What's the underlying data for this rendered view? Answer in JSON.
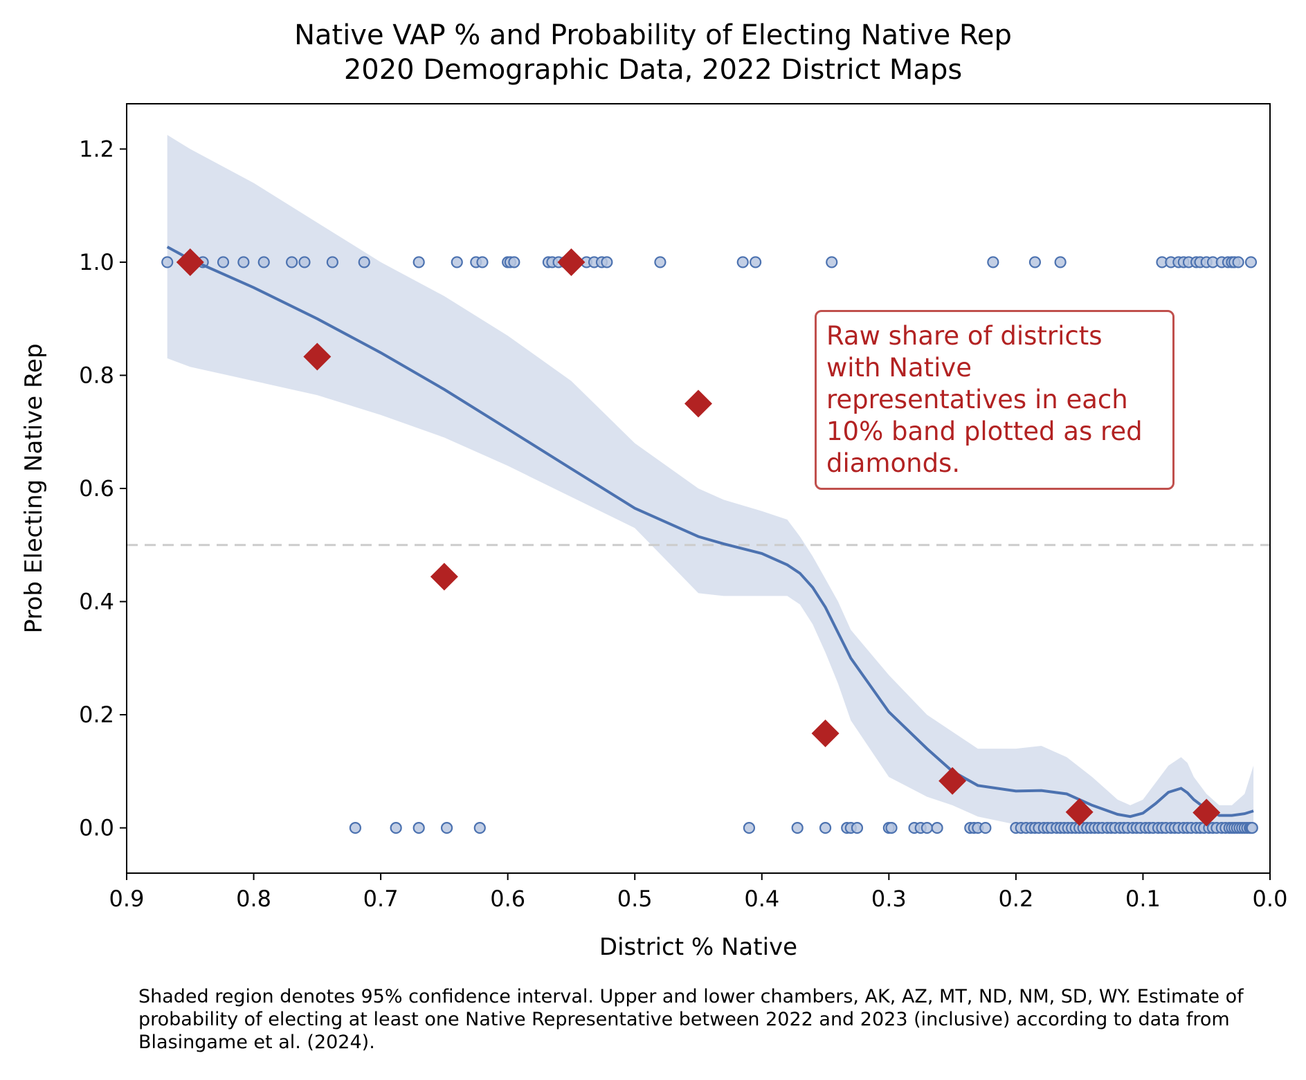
{
  "title": "Native VAP % and Probability of Electing Native Rep",
  "subtitle": "2020 Demographic Data, 2022 District Maps",
  "caption": "Shaded region denotes 95% confidence interval. Upper and lower chambers, AK, AZ, MT, ND, NM, SD, WY. Estimate of probability of electing at least one Native Representative between 2022 and 2023 (inclusive) according to data from Blasingame et al. (2024).",
  "annotation": "Raw share of districts with Native representatives in each 10% band plotted as red diamonds.",
  "colors": {
    "fit_line": "#4c72b0",
    "band": "#dbe2ef",
    "diamond": "#b22222",
    "dots": "#4c72b0",
    "reference": "#cccccc"
  },
  "chart_data": {
    "type": "scatter",
    "xlabel": "District % Native",
    "ylabel": "Prob Electing Native Rep",
    "xlim": [
      0.9,
      0.0
    ],
    "ylim": [
      -0.08,
      1.28
    ],
    "x_ticks": [
      "0.9",
      "0.8",
      "0.7",
      "0.6",
      "0.5",
      "0.4",
      "0.3",
      "0.2",
      "0.1",
      "0.0"
    ],
    "y_ticks": [
      "0.0",
      "0.2",
      "0.4",
      "0.6",
      "0.8",
      "1.0",
      "1.2"
    ],
    "grid": false,
    "reference_line": {
      "y": 0.5,
      "style": "dashed"
    },
    "districts_elected_native": [
      0.868,
      0.85,
      0.84,
      0.824,
      0.808,
      0.792,
      0.77,
      0.76,
      0.738,
      0.713,
      0.67,
      0.64,
      0.625,
      0.62,
      0.6,
      0.598,
      0.595,
      0.568,
      0.565,
      0.56,
      0.555,
      0.548,
      0.538,
      0.532,
      0.526,
      0.522,
      0.48,
      0.415,
      0.405,
      0.345,
      0.218,
      0.185,
      0.165,
      0.085,
      0.078,
      0.072,
      0.068,
      0.064,
      0.058,
      0.055,
      0.05,
      0.045,
      0.038,
      0.033,
      0.03,
      0.028,
      0.025,
      0.015
    ],
    "districts_no_native": [
      0.72,
      0.688,
      0.67,
      0.648,
      0.622,
      0.41,
      0.372,
      0.35,
      0.333,
      0.33,
      0.325,
      0.3,
      0.298,
      0.28,
      0.275,
      0.27,
      0.262,
      0.236,
      0.233,
      0.23,
      0.224,
      0.2,
      0.196,
      0.192,
      0.188,
      0.185,
      0.182,
      0.178,
      0.175,
      0.172,
      0.168,
      0.165,
      0.162,
      0.159,
      0.156,
      0.153,
      0.15,
      0.147,
      0.144,
      0.141,
      0.138,
      0.135,
      0.132,
      0.128,
      0.125,
      0.122,
      0.118,
      0.115,
      0.112,
      0.108,
      0.105,
      0.102,
      0.098,
      0.095,
      0.092,
      0.088,
      0.085,
      0.082,
      0.078,
      0.075,
      0.072,
      0.068,
      0.065,
      0.062,
      0.058,
      0.055,
      0.052,
      0.048,
      0.045,
      0.042,
      0.038,
      0.035,
      0.032,
      0.03,
      0.028,
      0.026,
      0.024,
      0.022,
      0.02,
      0.018,
      0.016,
      0.015,
      0.014
    ],
    "band_share": {
      "x": [
        0.85,
        0.75,
        0.65,
        0.55,
        0.45,
        0.35,
        0.25,
        0.15,
        0.05
      ],
      "y": [
        1.0,
        0.833,
        0.444,
        1.0,
        0.75,
        0.167,
        0.083,
        0.028,
        0.027
      ]
    },
    "fit": {
      "x": [
        0.868,
        0.85,
        0.8,
        0.75,
        0.7,
        0.65,
        0.6,
        0.55,
        0.5,
        0.45,
        0.43,
        0.4,
        0.38,
        0.37,
        0.36,
        0.35,
        0.34,
        0.33,
        0.3,
        0.27,
        0.25,
        0.23,
        0.2,
        0.18,
        0.16,
        0.14,
        0.12,
        0.11,
        0.1,
        0.09,
        0.08,
        0.07,
        0.065,
        0.06,
        0.05,
        0.04,
        0.03,
        0.02,
        0.013
      ],
      "y": [
        1.027,
        1.005,
        0.955,
        0.9,
        0.84,
        0.775,
        0.705,
        0.635,
        0.565,
        0.515,
        0.502,
        0.485,
        0.465,
        0.45,
        0.425,
        0.39,
        0.345,
        0.3,
        0.205,
        0.14,
        0.1,
        0.075,
        0.065,
        0.066,
        0.06,
        0.04,
        0.024,
        0.02,
        0.026,
        0.043,
        0.063,
        0.07,
        0.062,
        0.05,
        0.033,
        0.022,
        0.022,
        0.025,
        0.03
      ],
      "lower": [
        0.83,
        0.815,
        0.79,
        0.765,
        0.73,
        0.69,
        0.64,
        0.585,
        0.53,
        0.415,
        0.41,
        0.41,
        0.41,
        0.395,
        0.36,
        0.31,
        0.255,
        0.19,
        0.09,
        0.055,
        0.04,
        0.02,
        0.006,
        0.003,
        0.002,
        0.001,
        0.0,
        0.0,
        0.0,
        0.0,
        0.0,
        0.0,
        0.0,
        0.0,
        0.0,
        0.0,
        0.0,
        0.0,
        0.0
      ],
      "upper": [
        1.225,
        1.2,
        1.14,
        1.07,
        1.0,
        0.94,
        0.87,
        0.79,
        0.68,
        0.6,
        0.58,
        0.56,
        0.545,
        0.515,
        0.48,
        0.44,
        0.4,
        0.35,
        0.27,
        0.2,
        0.17,
        0.14,
        0.14,
        0.145,
        0.125,
        0.09,
        0.05,
        0.04,
        0.05,
        0.08,
        0.11,
        0.125,
        0.115,
        0.09,
        0.06,
        0.04,
        0.04,
        0.06,
        0.11
      ]
    }
  }
}
